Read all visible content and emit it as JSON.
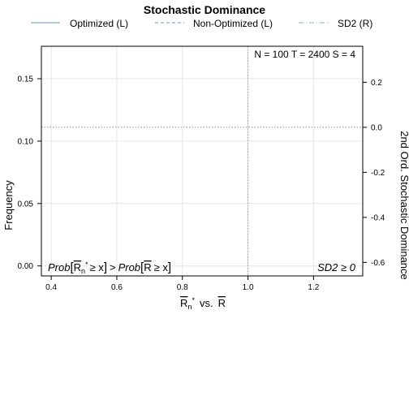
{
  "chart_data": {
    "type": "line",
    "title": "Stochastic Dominance",
    "legend": {
      "placement": "top",
      "entries": [
        {
          "label": "Optimized (L)",
          "color": "#86a9d0",
          "style": "solid"
        },
        {
          "label": "Non-Optimized (L)",
          "color": "#86a9d0",
          "style": "dashed"
        },
        {
          "label": "SD2 (R)",
          "color": "#9bc0c8",
          "style": "dotdash"
        }
      ]
    },
    "annotation_top_right": "N = 100  T = 2400  S = 4",
    "annotation_bottom_left": {
      "prob1": "Prob",
      "r1": "R",
      "sub1": "n",
      "sup1": "*",
      "ge1": "≥ x",
      "gt": ">",
      "prob2": "Prob",
      "r2": "R",
      "ge2": "≥ x"
    },
    "annotation_bottom_right": "SD2 ≥ 0",
    "xlabel": {
      "r1": "R",
      "sub": "n",
      "sup": "*",
      "vs": "vs.",
      "r2": "R"
    },
    "ylabel_left": "Frequency",
    "ylabel_right": "2nd Ord. Stochastic Dominance",
    "xlim": [
      0.37,
      1.35
    ],
    "ylim_left": [
      -0.008,
      0.176
    ],
    "ylim_right": [
      -0.66,
      0.36
    ],
    "x_ticks": [
      0.4,
      0.6,
      0.8,
      1.0,
      1.2
    ],
    "x_tick_labels": [
      "0.4",
      "0.6",
      "0.8",
      "1.0",
      "1.2"
    ],
    "y_left_ticks": [
      0.0,
      0.05,
      0.1,
      0.15
    ],
    "y_left_tick_labels": [
      "0.00",
      "0.05",
      "0.10",
      "0.15"
    ],
    "y_right_ticks": [
      0.2,
      0.0,
      -0.2,
      -0.4,
      -0.6
    ],
    "y_right_tick_labels": [
      "0.2",
      "0.0",
      "-0.2",
      "-0.4",
      "-0.6"
    ],
    "reference_lines": {
      "vertical_x": 1.0,
      "horizontal_right_y": 0.0
    },
    "grid": true,
    "series": []
  }
}
